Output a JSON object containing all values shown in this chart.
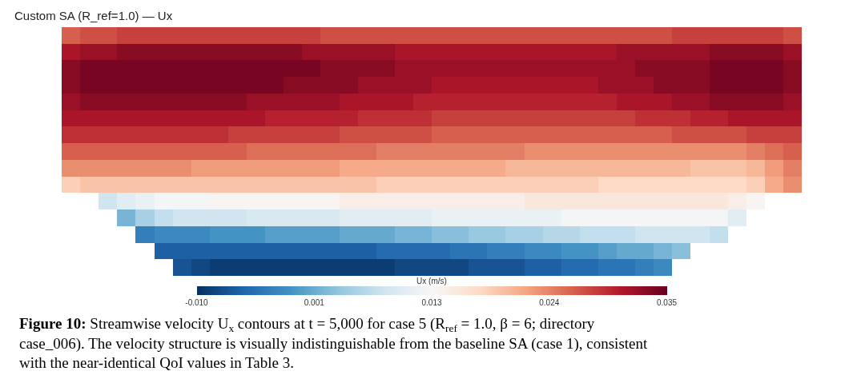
{
  "chart_data": {
    "type": "heatmap",
    "title": "Custom SA (R_ref=1.0) — Ux",
    "clabel": "Ux (m/s)",
    "categories": [
      null,
      null,
      null,
      null,
      null,
      null,
      null,
      null,
      null,
      null,
      null,
      null,
      null,
      null,
      null,
      null,
      null,
      null,
      null,
      null,
      null,
      null,
      null,
      null,
      null,
      null,
      null,
      null,
      null,
      null,
      null,
      null,
      null,
      null,
      null,
      null,
      null,
      null,
      null,
      null
    ],
    "y_categories": [
      null,
      null,
      null,
      null,
      null,
      null,
      null,
      null,
      null,
      null,
      null,
      null,
      null,
      null,
      null
    ],
    "cells": [
      [
        0.026,
        0.027,
        0.027,
        0.028,
        0.028,
        0.028,
        0.028,
        0.028,
        0.028,
        0.028,
        0.028,
        0.028,
        0.028,
        0.028,
        0.027,
        0.027,
        0.027,
        0.027,
        0.027,
        0.027,
        0.027,
        0.027,
        0.027,
        0.027,
        0.027,
        0.027,
        0.027,
        0.027,
        0.027,
        0.027,
        0.027,
        0.027,
        0.027,
        0.028,
        0.028,
        0.028,
        0.028,
        0.028,
        0.028,
        0.027
      ],
      [
        0.031,
        0.032,
        0.032,
        0.033,
        0.033,
        0.033,
        0.033,
        0.033,
        0.033,
        0.033,
        0.033,
        0.033,
        0.033,
        0.032,
        0.032,
        0.032,
        0.032,
        0.032,
        0.031,
        0.031,
        0.031,
        0.031,
        0.031,
        0.031,
        0.031,
        0.031,
        0.031,
        0.031,
        0.031,
        0.031,
        0.032,
        0.032,
        0.032,
        0.032,
        0.032,
        0.033,
        0.033,
        0.033,
        0.033,
        0.032
      ],
      [
        0.033,
        0.034,
        0.034,
        0.034,
        0.034,
        0.034,
        0.034,
        0.034,
        0.034,
        0.034,
        0.034,
        0.034,
        0.034,
        0.034,
        0.033,
        0.033,
        0.033,
        0.033,
        0.032,
        0.032,
        0.032,
        0.032,
        0.032,
        0.032,
        0.032,
        0.032,
        0.032,
        0.032,
        0.032,
        0.032,
        0.032,
        0.033,
        0.033,
        0.033,
        0.033,
        0.034,
        0.034,
        0.034,
        0.034,
        0.033
      ],
      [
        0.033,
        0.034,
        0.034,
        0.034,
        0.034,
        0.034,
        0.034,
        0.034,
        0.034,
        0.034,
        0.034,
        0.034,
        0.033,
        0.033,
        0.033,
        0.033,
        0.032,
        0.032,
        0.032,
        0.032,
        0.031,
        0.031,
        0.031,
        0.031,
        0.031,
        0.031,
        0.031,
        0.031,
        0.031,
        0.032,
        0.032,
        0.032,
        0.033,
        0.033,
        0.033,
        0.034,
        0.034,
        0.034,
        0.034,
        0.033
      ],
      [
        0.032,
        0.033,
        0.033,
        0.033,
        0.033,
        0.033,
        0.033,
        0.033,
        0.033,
        0.033,
        0.032,
        0.032,
        0.032,
        0.032,
        0.032,
        0.031,
        0.031,
        0.031,
        0.031,
        0.03,
        0.03,
        0.03,
        0.03,
        0.03,
        0.03,
        0.03,
        0.03,
        0.03,
        0.03,
        0.03,
        0.031,
        0.031,
        0.031,
        0.032,
        0.032,
        0.033,
        0.033,
        0.033,
        0.033,
        0.032
      ],
      [
        0.031,
        0.031,
        0.031,
        0.031,
        0.031,
        0.031,
        0.031,
        0.031,
        0.031,
        0.031,
        0.031,
        0.03,
        0.03,
        0.03,
        0.03,
        0.03,
        0.029,
        0.029,
        0.029,
        0.029,
        0.028,
        0.028,
        0.028,
        0.028,
        0.028,
        0.028,
        0.028,
        0.028,
        0.028,
        0.028,
        0.028,
        0.029,
        0.029,
        0.029,
        0.03,
        0.03,
        0.031,
        0.031,
        0.031,
        0.031
      ],
      [
        0.029,
        0.029,
        0.029,
        0.029,
        0.029,
        0.029,
        0.029,
        0.029,
        0.029,
        0.028,
        0.028,
        0.028,
        0.028,
        0.028,
        0.028,
        0.027,
        0.027,
        0.027,
        0.027,
        0.027,
        0.026,
        0.026,
        0.026,
        0.026,
        0.026,
        0.026,
        0.026,
        0.026,
        0.026,
        0.026,
        0.026,
        0.026,
        0.026,
        0.027,
        0.027,
        0.027,
        0.027,
        0.028,
        0.028,
        0.028
      ],
      [
        0.026,
        0.026,
        0.026,
        0.026,
        0.026,
        0.026,
        0.026,
        0.026,
        0.026,
        0.026,
        0.025,
        0.025,
        0.025,
        0.025,
        0.025,
        0.025,
        0.025,
        0.024,
        0.024,
        0.024,
        0.024,
        0.024,
        0.024,
        0.024,
        0.024,
        0.023,
        0.023,
        0.023,
        0.023,
        0.023,
        0.023,
        0.023,
        0.023,
        0.023,
        0.023,
        0.023,
        0.023,
        0.024,
        0.025,
        0.026
      ],
      [
        0.023,
        0.023,
        0.023,
        0.023,
        0.023,
        0.023,
        0.023,
        0.022,
        0.022,
        0.022,
        0.022,
        0.022,
        0.022,
        0.022,
        0.022,
        0.021,
        0.021,
        0.021,
        0.021,
        0.021,
        0.021,
        0.021,
        0.021,
        0.021,
        0.02,
        0.02,
        0.02,
        0.02,
        0.02,
        0.02,
        0.02,
        0.02,
        0.02,
        0.02,
        0.019,
        0.019,
        0.019,
        0.02,
        0.022,
        0.024
      ],
      [
        0.018,
        0.019,
        0.019,
        0.019,
        0.019,
        0.019,
        0.019,
        0.019,
        0.019,
        0.019,
        0.019,
        0.019,
        0.019,
        0.019,
        0.019,
        0.019,
        0.019,
        0.018,
        0.018,
        0.018,
        0.018,
        0.018,
        0.018,
        0.018,
        0.018,
        0.018,
        0.018,
        0.018,
        0.018,
        0.017,
        0.017,
        0.017,
        0.017,
        0.017,
        0.017,
        0.017,
        0.017,
        0.018,
        0.021,
        0.023
      ],
      [
        null,
        null,
        0.008,
        0.01,
        0.011,
        0.012,
        0.012,
        0.012,
        0.013,
        0.013,
        0.013,
        0.013,
        0.013,
        0.013,
        0.013,
        0.014,
        0.014,
        0.014,
        0.014,
        0.014,
        0.014,
        0.014,
        0.014,
        0.014,
        0.014,
        0.015,
        0.015,
        0.015,
        0.015,
        0.015,
        0.015,
        0.015,
        0.015,
        0.015,
        0.015,
        0.015,
        0.014,
        0.013,
        null,
        null
      ],
      [
        null,
        null,
        null,
        0.002,
        0.005,
        0.007,
        0.008,
        0.008,
        0.008,
        0.008,
        0.009,
        0.009,
        0.009,
        0.009,
        0.009,
        0.01,
        0.01,
        0.01,
        0.01,
        0.01,
        0.011,
        0.011,
        0.011,
        0.011,
        0.011,
        0.011,
        0.011,
        0.012,
        0.012,
        0.012,
        0.012,
        0.012,
        0.012,
        0.012,
        0.012,
        0.012,
        0.01,
        null,
        null,
        null
      ],
      [
        null,
        null,
        null,
        null,
        -0.003,
        -0.002,
        -0.002,
        -0.002,
        -0.001,
        -0.001,
        -0.001,
        0,
        0,
        0,
        0,
        0.001,
        0.001,
        0.001,
        0.002,
        0.002,
        0.003,
        0.003,
        0.004,
        0.004,
        0.005,
        0.005,
        0.006,
        0.006,
        0.007,
        0.007,
        0.007,
        0.008,
        0.008,
        0.008,
        0.008,
        0.007,
        null,
        null,
        null,
        null
      ],
      [
        null,
        null,
        null,
        null,
        null,
        -0.006,
        -0.006,
        -0.006,
        -0.006,
        -0.006,
        -0.006,
        -0.006,
        -0.006,
        -0.006,
        -0.006,
        -0.006,
        -0.006,
        -0.005,
        -0.005,
        -0.005,
        -0.005,
        -0.004,
        -0.004,
        -0.003,
        -0.003,
        -0.002,
        -0.002,
        -0.001,
        -0.001,
        0,
        0.001,
        0.001,
        0.002,
        0.003,
        null,
        null,
        null,
        null,
        null,
        null
      ],
      [
        null,
        null,
        null,
        null,
        null,
        null,
        -0.007,
        -0.008,
        -0.009,
        -0.009,
        -0.009,
        -0.009,
        -0.009,
        -0.009,
        -0.009,
        -0.009,
        -0.009,
        -0.009,
        -0.008,
        -0.008,
        -0.008,
        -0.008,
        -0.007,
        -0.007,
        -0.007,
        -0.006,
        -0.006,
        -0.005,
        -0.005,
        -0.004,
        -0.004,
        -0.003,
        -0.002,
        null,
        null,
        null,
        null,
        null,
        null,
        null
      ]
    ],
    "clim": [
      -0.01,
      0.035
    ],
    "cticks": [
      {
        "value": -0.01,
        "label": "-0.010"
      },
      {
        "value": 0.00125,
        "label": "0.001"
      },
      {
        "value": 0.0125,
        "label": "0.013"
      },
      {
        "value": 0.02375,
        "label": "0.024"
      },
      0.035
    ],
    "annotations": [
      "Figure 10: Streamwise velocity U$_{x}$ contours at t = 5,000 for case 5 (R$_{ref}$ = 1.0, β = 6; directory case_006). The velocity structure is visually indistinguishable from the baseline SA (case 1), consistent with the near-identical QoI values in Table 3."
    ]
  }
}
